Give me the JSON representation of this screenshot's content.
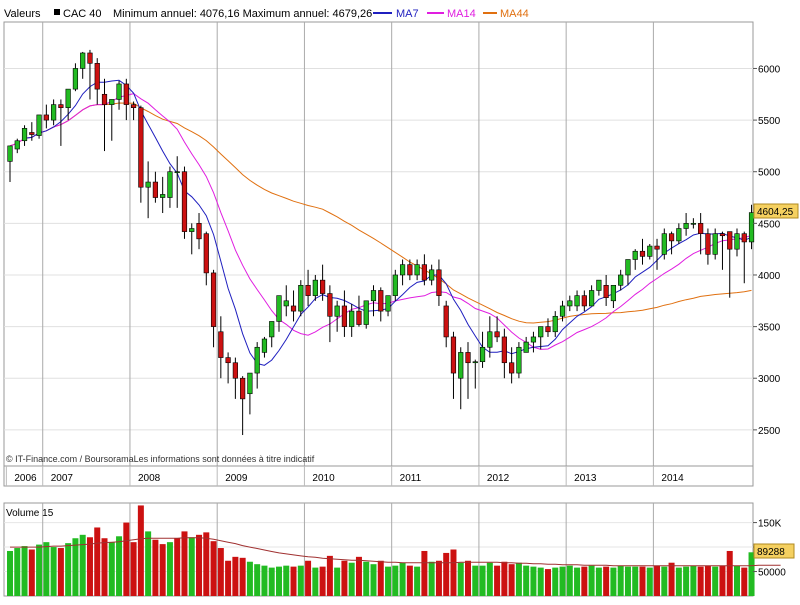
{
  "header": {
    "valeurs_label": "Valeurs",
    "instrument": "CAC 40",
    "range_text": "Minimum annuel: 4076,16 Maximum annuel: 4679,26",
    "legend": [
      {
        "name": "MA7",
        "color": "#1f1fbf"
      },
      {
        "name": "MA14",
        "color": "#e01ee0"
      },
      {
        "name": "MA44",
        "color": "#e07010"
      }
    ]
  },
  "credits": "© IT-Finance.com / BoursoramaLes informations sont données à titre indicatif",
  "colors": {
    "up": "#22bb22",
    "down": "#cc1111",
    "ma7": "#1f1fbf",
    "ma14": "#e01ee0",
    "ma44": "#e07010",
    "last_price_bg": "#f5d060",
    "volume_ma": "#a03030"
  },
  "volume_panel": {
    "title": "Volume 15",
    "last_value_label": "89288",
    "ytick_labels": [
      "150K",
      "50000"
    ]
  },
  "chart_data": {
    "type": "candlestick",
    "title": "CAC 40",
    "interval": "monthly",
    "x_tick_labels": [
      "2006",
      "2007",
      "2008",
      "2009",
      "2010",
      "2011",
      "2012",
      "2013",
      "2014"
    ],
    "price_axis": {
      "ylim": [
        2150,
        6450
      ],
      "ticks": [
        2500,
        3000,
        3500,
        4000,
        4500,
        5000,
        5500,
        6000
      ]
    },
    "last_price_label": "4604,25",
    "volume_axis": {
      "ylim": [
        0,
        190000
      ],
      "ticks": [
        50000,
        100000,
        150000
      ],
      "tick_labels": [
        "50000",
        "",
        "150K"
      ]
    },
    "candles": [
      {
        "o": 5100,
        "h": 5250,
        "l": 4900,
        "c": 5250
      },
      {
        "o": 5220,
        "h": 5320,
        "l": 5180,
        "c": 5300
      },
      {
        "o": 5300,
        "h": 5450,
        "l": 5250,
        "c": 5420
      },
      {
        "o": 5380,
        "h": 5480,
        "l": 5300,
        "c": 5360
      },
      {
        "o": 5350,
        "h": 5550,
        "l": 5320,
        "c": 5550
      },
      {
        "o": 5550,
        "h": 5650,
        "l": 5420,
        "c": 5500
      },
      {
        "o": 5500,
        "h": 5700,
        "l": 5450,
        "c": 5650
      },
      {
        "o": 5650,
        "h": 5700,
        "l": 5250,
        "c": 5620
      },
      {
        "o": 5620,
        "h": 5780,
        "l": 5500,
        "c": 5800
      },
      {
        "o": 5800,
        "h": 6050,
        "l": 5780,
        "c": 6000
      },
      {
        "o": 6000,
        "h": 6160,
        "l": 5900,
        "c": 6150
      },
      {
        "o": 6150,
        "h": 6180,
        "l": 5700,
        "c": 6050
      },
      {
        "o": 6050,
        "h": 6100,
        "l": 5650,
        "c": 5800
      },
      {
        "o": 5750,
        "h": 5900,
        "l": 5200,
        "c": 5650
      },
      {
        "o": 5650,
        "h": 5700,
        "l": 5300,
        "c": 5700
      },
      {
        "o": 5700,
        "h": 5880,
        "l": 5600,
        "c": 5850
      },
      {
        "o": 5850,
        "h": 5900,
        "l": 5500,
        "c": 5650
      },
      {
        "o": 5650,
        "h": 5680,
        "l": 5500,
        "c": 5620
      },
      {
        "o": 5620,
        "h": 5640,
        "l": 4700,
        "c": 4850
      },
      {
        "o": 4850,
        "h": 5100,
        "l": 4550,
        "c": 4900
      },
      {
        "o": 4900,
        "h": 5000,
        "l": 4700,
        "c": 4750
      },
      {
        "o": 4750,
        "h": 4950,
        "l": 4600,
        "c": 4780
      },
      {
        "o": 4750,
        "h": 5050,
        "l": 4650,
        "c": 5000
      },
      {
        "o": 5000,
        "h": 5150,
        "l": 4650,
        "c": 5000
      },
      {
        "o": 5000,
        "h": 5050,
        "l": 4350,
        "c": 4420
      },
      {
        "o": 4420,
        "h": 4500,
        "l": 4200,
        "c": 4450
      },
      {
        "o": 4500,
        "h": 4600,
        "l": 4250,
        "c": 4350
      },
      {
        "o": 4400,
        "h": 4420,
        "l": 3900,
        "c": 4020
      },
      {
        "o": 4020,
        "h": 4050,
        "l": 3300,
        "c": 3500
      },
      {
        "o": 3450,
        "h": 3600,
        "l": 3000,
        "c": 3200
      },
      {
        "o": 3200,
        "h": 3250,
        "l": 2950,
        "c": 3150
      },
      {
        "o": 3150,
        "h": 3200,
        "l": 2800,
        "c": 3000
      },
      {
        "o": 3000,
        "h": 3020,
        "l": 2450,
        "c": 2800
      },
      {
        "o": 2850,
        "h": 3050,
        "l": 2650,
        "c": 3050
      },
      {
        "o": 3050,
        "h": 3350,
        "l": 2900,
        "c": 3300
      },
      {
        "o": 3250,
        "h": 3400,
        "l": 3200,
        "c": 3380
      },
      {
        "o": 3400,
        "h": 3550,
        "l": 3300,
        "c": 3550
      },
      {
        "o": 3550,
        "h": 3800,
        "l": 3450,
        "c": 3800
      },
      {
        "o": 3700,
        "h": 3900,
        "l": 3600,
        "c": 3750
      },
      {
        "o": 3700,
        "h": 3850,
        "l": 3550,
        "c": 3650
      },
      {
        "o": 3650,
        "h": 3950,
        "l": 3600,
        "c": 3900
      },
      {
        "o": 3900,
        "h": 4050,
        "l": 3700,
        "c": 3800
      },
      {
        "o": 3800,
        "h": 4000,
        "l": 3750,
        "c": 3950
      },
      {
        "o": 3950,
        "h": 4100,
        "l": 3750,
        "c": 3820
      },
      {
        "o": 3820,
        "h": 3900,
        "l": 3350,
        "c": 3600
      },
      {
        "o": 3600,
        "h": 3750,
        "l": 3450,
        "c": 3700
      },
      {
        "o": 3700,
        "h": 3850,
        "l": 3400,
        "c": 3500
      },
      {
        "o": 3500,
        "h": 3720,
        "l": 3400,
        "c": 3650
      },
      {
        "o": 3650,
        "h": 3800,
        "l": 3500,
        "c": 3520
      },
      {
        "o": 3520,
        "h": 3750,
        "l": 3480,
        "c": 3750
      },
      {
        "o": 3750,
        "h": 3900,
        "l": 3600,
        "c": 3850
      },
      {
        "o": 3850,
        "h": 3880,
        "l": 3550,
        "c": 3650
      },
      {
        "o": 3650,
        "h": 3800,
        "l": 3600,
        "c": 3800
      },
      {
        "o": 3800,
        "h": 4050,
        "l": 3750,
        "c": 4000
      },
      {
        "o": 4000,
        "h": 4150,
        "l": 3900,
        "c": 4100
      },
      {
        "o": 4100,
        "h": 4150,
        "l": 3950,
        "c": 4000
      },
      {
        "o": 4000,
        "h": 4150,
        "l": 3950,
        "c": 4100
      },
      {
        "o": 4100,
        "h": 4200,
        "l": 3900,
        "c": 3950
      },
      {
        "o": 3950,
        "h": 4100,
        "l": 3900,
        "c": 4050
      },
      {
        "o": 4050,
        "h": 4150,
        "l": 3700,
        "c": 3800
      },
      {
        "o": 3700,
        "h": 3750,
        "l": 3300,
        "c": 3400
      },
      {
        "o": 3400,
        "h": 3450,
        "l": 2800,
        "c": 3050
      },
      {
        "o": 3000,
        "h": 3300,
        "l": 2700,
        "c": 3250
      },
      {
        "o": 3250,
        "h": 3350,
        "l": 2800,
        "c": 3150
      },
      {
        "o": 3150,
        "h": 3180,
        "l": 2900,
        "c": 3160
      },
      {
        "o": 3160,
        "h": 3450,
        "l": 3100,
        "c": 3300
      },
      {
        "o": 3300,
        "h": 3600,
        "l": 3200,
        "c": 3450
      },
      {
        "o": 3450,
        "h": 3600,
        "l": 3350,
        "c": 3400
      },
      {
        "o": 3400,
        "h": 3480,
        "l": 3000,
        "c": 3150
      },
      {
        "o": 3150,
        "h": 3300,
        "l": 2950,
        "c": 3050
      },
      {
        "o": 3050,
        "h": 3350,
        "l": 3000,
        "c": 3300
      },
      {
        "o": 3250,
        "h": 3400,
        "l": 3250,
        "c": 3350
      },
      {
        "o": 3350,
        "h": 3450,
        "l": 3250,
        "c": 3400
      },
      {
        "o": 3400,
        "h": 3500,
        "l": 3280,
        "c": 3500
      },
      {
        "o": 3500,
        "h": 3580,
        "l": 3400,
        "c": 3450
      },
      {
        "o": 3450,
        "h": 3650,
        "l": 3400,
        "c": 3600
      },
      {
        "o": 3600,
        "h": 3750,
        "l": 3550,
        "c": 3700
      },
      {
        "o": 3700,
        "h": 3800,
        "l": 3650,
        "c": 3750
      },
      {
        "o": 3700,
        "h": 3850,
        "l": 3650,
        "c": 3800
      },
      {
        "o": 3800,
        "h": 3850,
        "l": 3650,
        "c": 3700
      },
      {
        "o": 3700,
        "h": 3900,
        "l": 3700,
        "c": 3850
      },
      {
        "o": 3850,
        "h": 3950,
        "l": 3800,
        "c": 3950
      },
      {
        "o": 3900,
        "h": 4000,
        "l": 3700,
        "c": 3780
      },
      {
        "o": 3750,
        "h": 3900,
        "l": 3680,
        "c": 3900
      },
      {
        "o": 3900,
        "h": 4050,
        "l": 3850,
        "c": 4000
      },
      {
        "o": 4000,
        "h": 4150,
        "l": 3900,
        "c": 4150
      },
      {
        "o": 4150,
        "h": 4250,
        "l": 4050,
        "c": 4230
      },
      {
        "o": 4230,
        "h": 4350,
        "l": 4100,
        "c": 4180
      },
      {
        "o": 4180,
        "h": 4300,
        "l": 4150,
        "c": 4280
      },
      {
        "o": 4280,
        "h": 4350,
        "l": 4050,
        "c": 4250
      },
      {
        "o": 4200,
        "h": 4450,
        "l": 4150,
        "c": 4400
      },
      {
        "o": 4400,
        "h": 4420,
        "l": 4200,
        "c": 4330
      },
      {
        "o": 4330,
        "h": 4500,
        "l": 4300,
        "c": 4450
      },
      {
        "o": 4450,
        "h": 4600,
        "l": 4380,
        "c": 4500
      },
      {
        "o": 4500,
        "h": 4550,
        "l": 4450,
        "c": 4500
      },
      {
        "o": 4500,
        "h": 4600,
        "l": 4200,
        "c": 4400
      },
      {
        "o": 4400,
        "h": 4450,
        "l": 4100,
        "c": 4200
      },
      {
        "o": 4200,
        "h": 4450,
        "l": 4150,
        "c": 4400
      },
      {
        "o": 4400,
        "h": 4420,
        "l": 4050,
        "c": 4380
      },
      {
        "o": 4420,
        "h": 4420,
        "l": 3780,
        "c": 4250
      },
      {
        "o": 4250,
        "h": 4450,
        "l": 4180,
        "c": 4400
      },
      {
        "o": 4400,
        "h": 4420,
        "l": 3920,
        "c": 4320
      },
      {
        "o": 4320,
        "h": 4680,
        "l": 4250,
        "c": 4604
      }
    ],
    "volume": [
      {
        "v": 92000,
        "up": true
      },
      {
        "v": 98000,
        "up": true
      },
      {
        "v": 102000,
        "up": true
      },
      {
        "v": 95000,
        "up": false
      },
      {
        "v": 105000,
        "up": true
      },
      {
        "v": 110000,
        "up": true
      },
      {
        "v": 100000,
        "up": true
      },
      {
        "v": 98000,
        "up": false
      },
      {
        "v": 108000,
        "up": true
      },
      {
        "v": 118000,
        "up": true
      },
      {
        "v": 125000,
        "up": true
      },
      {
        "v": 120000,
        "up": false
      },
      {
        "v": 140000,
        "up": false
      },
      {
        "v": 118000,
        "up": false
      },
      {
        "v": 110000,
        "up": true
      },
      {
        "v": 122000,
        "up": true
      },
      {
        "v": 150000,
        "up": false
      },
      {
        "v": 110000,
        "up": false
      },
      {
        "v": 185000,
        "up": false
      },
      {
        "v": 132000,
        "up": true
      },
      {
        "v": 115000,
        "up": false
      },
      {
        "v": 106000,
        "up": false
      },
      {
        "v": 110000,
        "up": true
      },
      {
        "v": 118000,
        "up": false
      },
      {
        "v": 132000,
        "up": false
      },
      {
        "v": 120000,
        "up": true
      },
      {
        "v": 125000,
        "up": false
      },
      {
        "v": 130000,
        "up": false
      },
      {
        "v": 112000,
        "up": false
      },
      {
        "v": 98000,
        "up": false
      },
      {
        "v": 72000,
        "up": false
      },
      {
        "v": 80000,
        "up": false
      },
      {
        "v": 78000,
        "up": false
      },
      {
        "v": 70000,
        "up": true
      },
      {
        "v": 65000,
        "up": true
      },
      {
        "v": 62000,
        "up": true
      },
      {
        "v": 58000,
        "up": true
      },
      {
        "v": 60000,
        "up": true
      },
      {
        "v": 62000,
        "up": true
      },
      {
        "v": 60000,
        "up": false
      },
      {
        "v": 62000,
        "up": true
      },
      {
        "v": 72000,
        "up": false
      },
      {
        "v": 58000,
        "up": true
      },
      {
        "v": 60000,
        "up": false
      },
      {
        "v": 82000,
        "up": false
      },
      {
        "v": 58000,
        "up": true
      },
      {
        "v": 72000,
        "up": false
      },
      {
        "v": 68000,
        "up": true
      },
      {
        "v": 80000,
        "up": false
      },
      {
        "v": 70000,
        "up": true
      },
      {
        "v": 65000,
        "up": true
      },
      {
        "v": 72000,
        "up": false
      },
      {
        "v": 60000,
        "up": true
      },
      {
        "v": 62000,
        "up": true
      },
      {
        "v": 68000,
        "up": true
      },
      {
        "v": 62000,
        "up": false
      },
      {
        "v": 60000,
        "up": true
      },
      {
        "v": 92000,
        "up": false
      },
      {
        "v": 70000,
        "up": true
      },
      {
        "v": 72000,
        "up": false
      },
      {
        "v": 88000,
        "up": false
      },
      {
        "v": 95000,
        "up": false
      },
      {
        "v": 68000,
        "up": true
      },
      {
        "v": 72000,
        "up": false
      },
      {
        "v": 62000,
        "up": true
      },
      {
        "v": 62000,
        "up": true
      },
      {
        "v": 68000,
        "up": true
      },
      {
        "v": 62000,
        "up": false
      },
      {
        "v": 70000,
        "up": false
      },
      {
        "v": 65000,
        "up": false
      },
      {
        "v": 68000,
        "up": true
      },
      {
        "v": 62000,
        "up": true
      },
      {
        "v": 60000,
        "up": true
      },
      {
        "v": 58000,
        "up": true
      },
      {
        "v": 55000,
        "up": false
      },
      {
        "v": 58000,
        "up": true
      },
      {
        "v": 60000,
        "up": true
      },
      {
        "v": 62000,
        "up": true
      },
      {
        "v": 58000,
        "up": true
      },
      {
        "v": 60000,
        "up": false
      },
      {
        "v": 62000,
        "up": true
      },
      {
        "v": 58000,
        "up": true
      },
      {
        "v": 60000,
        "up": false
      },
      {
        "v": 58000,
        "up": true
      },
      {
        "v": 62000,
        "up": true
      },
      {
        "v": 60000,
        "up": true
      },
      {
        "v": 60000,
        "up": true
      },
      {
        "v": 60000,
        "up": false
      },
      {
        "v": 58000,
        "up": true
      },
      {
        "v": 62000,
        "up": false
      },
      {
        "v": 60000,
        "up": true
      },
      {
        "v": 68000,
        "up": false
      },
      {
        "v": 58000,
        "up": true
      },
      {
        "v": 60000,
        "up": true
      },
      {
        "v": 62000,
        "up": true
      },
      {
        "v": 60000,
        "up": false
      },
      {
        "v": 62000,
        "up": false
      },
      {
        "v": 60000,
        "up": true
      },
      {
        "v": 62000,
        "up": false
      },
      {
        "v": 92000,
        "up": false
      },
      {
        "v": 62000,
        "up": true
      },
      {
        "v": 58000,
        "up": false
      },
      {
        "v": 89288,
        "up": true
      }
    ],
    "volume_ma": [
      100000,
      100000,
      100000,
      100000,
      100000,
      101000,
      102000,
      102000,
      103000,
      104000,
      105000,
      106000,
      108000,
      109000,
      110000,
      111000,
      113000,
      115000,
      117000,
      118000,
      118000,
      118000,
      118000,
      118000,
      119000,
      119000,
      119000,
      118000,
      116000,
      113000,
      110000,
      107000,
      103000,
      100000,
      97000,
      94000,
      91000,
      88000,
      86000,
      84000,
      82000,
      80000,
      79000,
      77000,
      76000,
      75000,
      74000,
      73000,
      73000,
      72000,
      71000,
      70000,
      69000,
      69000,
      68000,
      68000,
      68000,
      68000,
      68000,
      68000,
      68000,
      68000,
      69000,
      69000,
      69000,
      69000,
      69000,
      69000,
      68000,
      68000,
      67000,
      67000,
      66000,
      66000,
      65000,
      65000,
      64000,
      64000,
      64000,
      63000,
      63000,
      63000,
      63000,
      62000,
      62000,
      62000,
      62000,
      62000,
      62000,
      62000,
      62000,
      62000,
      62000,
      62000,
      62000,
      62000,
      62000,
      62000,
      62000,
      62000,
      62000,
      62000,
      62000,
      63000,
      63000,
      63000,
      63000
    ]
  }
}
